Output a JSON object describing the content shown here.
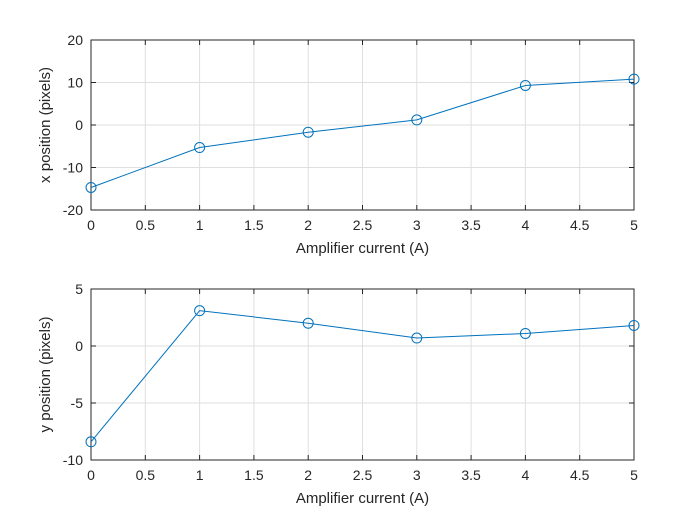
{
  "chart_data": [
    {
      "type": "line",
      "xlabel": "Amplifier current (A)",
      "ylabel": "x position (pixels)",
      "xlim": [
        0,
        5
      ],
      "ylim": [
        -20,
        20
      ],
      "xticks": [
        0,
        0.5,
        1,
        1.5,
        2,
        2.5,
        3,
        3.5,
        4,
        4.5,
        5
      ],
      "yticks": [
        -20,
        -10,
        0,
        10,
        20
      ],
      "grid": true,
      "marker": "circle",
      "color": "#0072BD",
      "x": [
        0,
        1,
        2,
        3,
        4,
        5
      ],
      "y": [
        -14.7,
        -5.3,
        -1.7,
        1.2,
        9.3,
        10.8
      ]
    },
    {
      "type": "line",
      "xlabel": "Amplifier current (A)",
      "ylabel": "y position (pixels)",
      "xlim": [
        0,
        5
      ],
      "ylim": [
        -10,
        5
      ],
      "xticks": [
        0,
        0.5,
        1,
        1.5,
        2,
        2.5,
        3,
        3.5,
        4,
        4.5,
        5
      ],
      "yticks": [
        -10,
        -5,
        0,
        5
      ],
      "grid": true,
      "marker": "circle",
      "color": "#0072BD",
      "x": [
        0,
        1,
        2,
        3,
        4,
        5
      ],
      "y": [
        -8.4,
        3.1,
        2.0,
        0.7,
        1.1,
        1.8
      ]
    }
  ]
}
